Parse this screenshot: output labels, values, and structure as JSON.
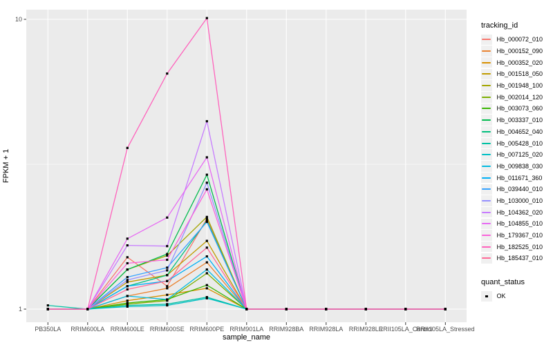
{
  "figure": {
    "background": "#FFFFFF",
    "panel_bg": "#EBEBEB",
    "grid_color": "#FFFFFF",
    "axis_text_color": "#4D4D4D",
    "axis_title_color": "#000000",
    "tick_mark_color": "#333333",
    "point_color": "#000000",
    "legend_key_bg": "#F0F0F0"
  },
  "chart_data": {
    "type": "line",
    "title": "",
    "xlabel": "sample_name",
    "ylabel": "FPKM + 1",
    "y_scale": "log10",
    "y_ticks": [
      1,
      10
    ],
    "y_minor_break": 3.162,
    "ylim": [
      0.93,
      10.8
    ],
    "grid": true,
    "legend_position": "right",
    "point_shape": "square",
    "categories": [
      "PB350LA",
      "RRIM600LA",
      "RRIM600LE",
      "RRIM600SE",
      "RRIM600PE",
      "RRIM901LA",
      "RRIM928BA",
      "RRIM928LA",
      "RRIM928LE",
      "RRII105LA_Control",
      "RRII105LA_Stressed"
    ],
    "series": [
      {
        "name": "Hb_000072_010",
        "color": "#F8766D",
        "values": [
          1,
          1,
          1.51,
          1.2,
          2.05,
          1,
          1,
          1,
          1,
          1,
          1
        ]
      },
      {
        "name": "Hb_000152_090",
        "color": "#EA8331",
        "values": [
          1,
          1,
          1.11,
          1.18,
          1.45,
          1,
          1,
          1,
          1,
          1,
          1
        ]
      },
      {
        "name": "Hb_000352_020",
        "color": "#D89000",
        "values": [
          1,
          1,
          1.07,
          1.12,
          1.18,
          1,
          1,
          1,
          1,
          1,
          1
        ]
      },
      {
        "name": "Hb_001518_050",
        "color": "#C09B00",
        "values": [
          1,
          1,
          1.24,
          1.31,
          1.72,
          1,
          1,
          1,
          1,
          1,
          1
        ]
      },
      {
        "name": "Hb_001948_100",
        "color": "#A3A500",
        "values": [
          1,
          1,
          1.37,
          1.53,
          2.08,
          1,
          1,
          1,
          1,
          1,
          1
        ]
      },
      {
        "name": "Hb_002014_120",
        "color": "#7CAE00",
        "values": [
          1,
          1,
          1.04,
          1.07,
          1.33,
          1,
          1,
          1,
          1,
          1,
          1
        ]
      },
      {
        "name": "Hb_003073_060",
        "color": "#39B600",
        "values": [
          1,
          1,
          1.05,
          1.08,
          1.21,
          1,
          1,
          1,
          1,
          1,
          1
        ]
      },
      {
        "name": "Hb_003337_010",
        "color": "#00BB4E",
        "values": [
          1,
          1,
          1.37,
          1.55,
          2.91,
          1,
          1,
          1,
          1,
          1,
          1
        ]
      },
      {
        "name": "Hb_004652_040",
        "color": "#00BF7D",
        "values": [
          1,
          1,
          1.2,
          1.31,
          2.02,
          1,
          1,
          1,
          1,
          1,
          1
        ]
      },
      {
        "name": "Hb_005428_010",
        "color": "#00C1A3",
        "values": [
          1.03,
          1,
          1.03,
          1.04,
          1.1,
          1,
          1,
          1,
          1,
          1,
          1
        ]
      },
      {
        "name": "Hb_007125_020",
        "color": "#00BFC4",
        "values": [
          1,
          1,
          1.02,
          1.03,
          1.09,
          1,
          1,
          1,
          1,
          1,
          1
        ]
      },
      {
        "name": "Hb_009838_030",
        "color": "#00BAE0",
        "values": [
          1,
          1,
          1.11,
          1.08,
          1.37,
          1,
          1,
          1,
          1,
          1,
          1
        ]
      },
      {
        "name": "Hb_011671_360",
        "color": "#00B0F6",
        "values": [
          1,
          1,
          1.2,
          1.25,
          1.52,
          1,
          1,
          1,
          1,
          1,
          1
        ]
      },
      {
        "name": "Hb_039440_010",
        "color": "#35A2FF",
        "values": [
          1,
          1,
          1.29,
          1.39,
          2.0,
          1,
          1,
          1,
          1,
          1,
          1
        ]
      },
      {
        "name": "Hb_103000_010",
        "color": "#9590FF",
        "values": [
          1,
          1,
          1.26,
          1.36,
          2.73,
          1,
          1,
          1,
          1,
          1,
          1
        ]
      },
      {
        "name": "Hb_104362_020",
        "color": "#C77CFF",
        "values": [
          1,
          1,
          1.66,
          1.65,
          4.45,
          1,
          1,
          1,
          1,
          1,
          1
        ]
      },
      {
        "name": "Hb_104855_010",
        "color": "#E76BF3",
        "values": [
          1,
          1,
          1.75,
          2.07,
          3.34,
          1,
          1,
          1,
          1,
          1,
          1
        ]
      },
      {
        "name": "Hb_179367_010",
        "color": "#FA62DB",
        "values": [
          1,
          1,
          1.44,
          1.48,
          2.59,
          1,
          1,
          1,
          1,
          1,
          1
        ]
      },
      {
        "name": "Hb_182525_010",
        "color": "#FF62BC",
        "values": [
          1,
          1,
          3.6,
          6.5,
          10.1,
          1,
          1,
          1,
          1,
          1,
          1
        ]
      },
      {
        "name": "Hb_185437_010",
        "color": "#FF6A98",
        "values": [
          1,
          1,
          1.17,
          1.25,
          1.63,
          1,
          1,
          1,
          1,
          1,
          1
        ]
      }
    ],
    "legends": [
      {
        "title": "tracking_id",
        "type": "line"
      },
      {
        "title": "quant_status",
        "items": [
          {
            "label": "OK",
            "shape": "square",
            "color": "#000000"
          }
        ]
      }
    ]
  }
}
